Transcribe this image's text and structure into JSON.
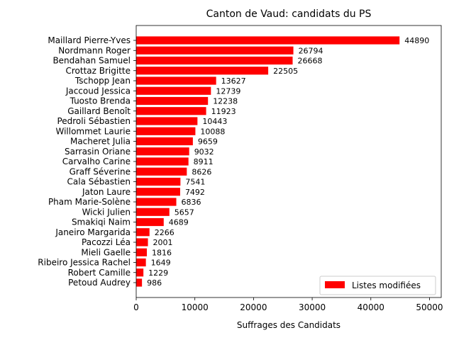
{
  "chart_data": {
    "type": "bar",
    "orientation": "horizontal",
    "title": "Canton de Vaud: candidats du PS",
    "xlabel": "Suffrages des Candidats",
    "ylabel": "",
    "xlim": [
      0,
      52000
    ],
    "xticks": [
      0,
      10000,
      20000,
      30000,
      40000,
      50000
    ],
    "grid": false,
    "legend_position": "lower-right",
    "color": "#ff0000",
    "series": [
      {
        "name": "Listes modifiées",
        "categories": [
          "Maillard Pierre-Yves",
          "Nordmann Roger",
          "Bendahan Samuel",
          "Crottaz Brigitte",
          "Tschopp Jean",
          "Jaccoud Jessica",
          "Tuosto Brenda",
          "Gaillard Benoît",
          "Pedroli Sébastien",
          "Willommet Laurie",
          "Macheret Julia",
          "Sarrasin Oriane",
          "Carvalho Carine",
          "Graff Séverine",
          "Cala Sébastien",
          "Jaton Laure",
          "Pham Marie-Solène",
          "Wicki Julien",
          "Smakiqi Naim",
          "Janeiro Margarida",
          "Pacozzi Léa",
          "Mieli Gaelle",
          "Ribeiro Jessica Rachel",
          "Robert Camille",
          "Petoud Audrey"
        ],
        "values": [
          44890,
          26794,
          26668,
          22505,
          13627,
          12739,
          12238,
          11923,
          10443,
          10088,
          9659,
          9032,
          8911,
          8626,
          7541,
          7492,
          6836,
          5657,
          4689,
          2266,
          2001,
          1816,
          1649,
          1229,
          986
        ]
      }
    ]
  }
}
